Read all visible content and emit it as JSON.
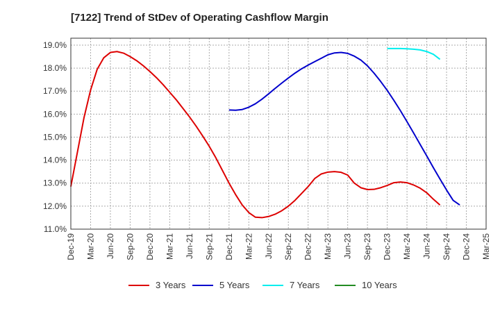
{
  "chart_data": {
    "type": "line",
    "title": "[7122]  Trend of StDev of Operating Cashflow Margin",
    "xlabel": "",
    "ylabel": "",
    "ylim": [
      11.0,
      19.3
    ],
    "y_ticks": [
      "11.0%",
      "12.0%",
      "13.0%",
      "14.0%",
      "15.0%",
      "16.0%",
      "17.0%",
      "18.0%",
      "19.0%"
    ],
    "y_tick_values": [
      11,
      12,
      13,
      14,
      15,
      16,
      17,
      18,
      19
    ],
    "x_ticks": [
      "Dec-19",
      "Mar-20",
      "Jun-20",
      "Sep-20",
      "Dec-20",
      "Mar-21",
      "Jun-21",
      "Sep-21",
      "Dec-21",
      "Mar-22",
      "Jun-22",
      "Sep-22",
      "Dec-22",
      "Mar-23",
      "Jun-23",
      "Sep-23",
      "Dec-23",
      "Mar-24",
      "Jun-24",
      "Sep-24",
      "Dec-24",
      "Mar-25"
    ],
    "grid": true,
    "legend_position": "bottom",
    "series": [
      {
        "name": "3 Years",
        "color": "#dd0000",
        "x_start": "Dec-19",
        "values": [
          12.85,
          14.35,
          15.85,
          17.05,
          17.95,
          18.45,
          18.68,
          18.72,
          18.65,
          18.5,
          18.32,
          18.1,
          17.85,
          17.58,
          17.28,
          16.95,
          16.62,
          16.25,
          15.88,
          15.48,
          15.05,
          14.6,
          14.1,
          13.55,
          13.0,
          12.5,
          12.05,
          11.72,
          11.52,
          11.5,
          11.55,
          11.65,
          11.8,
          12.0,
          12.25,
          12.55,
          12.85,
          13.2,
          13.4,
          13.48,
          13.5,
          13.47,
          13.35,
          13.0,
          12.8,
          12.72,
          12.73,
          12.8,
          12.9,
          13.02,
          13.05,
          13.02,
          12.92,
          12.78,
          12.58,
          12.3,
          12.05
        ]
      },
      {
        "name": "5 Years",
        "color": "#0000cc",
        "x_start": "Dec-21",
        "values": [
          16.18,
          16.17,
          16.2,
          16.3,
          16.45,
          16.65,
          16.88,
          17.12,
          17.35,
          17.57,
          17.78,
          17.97,
          18.13,
          18.28,
          18.43,
          18.58,
          18.66,
          18.68,
          18.64,
          18.52,
          18.35,
          18.1,
          17.78,
          17.42,
          17.03,
          16.6,
          16.15,
          15.67,
          15.18,
          14.68,
          14.18,
          13.67,
          13.18,
          12.7,
          12.25,
          12.05
        ]
      },
      {
        "name": "7 Years",
        "color": "#00eeee",
        "x_start": "Dec-23",
        "values": [
          18.85,
          18.85,
          18.85,
          18.84,
          18.82,
          18.79,
          18.72,
          18.6,
          18.38
        ]
      },
      {
        "name": "10 Years",
        "color": "#228b22",
        "x_start": "Dec-19",
        "values": []
      }
    ]
  }
}
